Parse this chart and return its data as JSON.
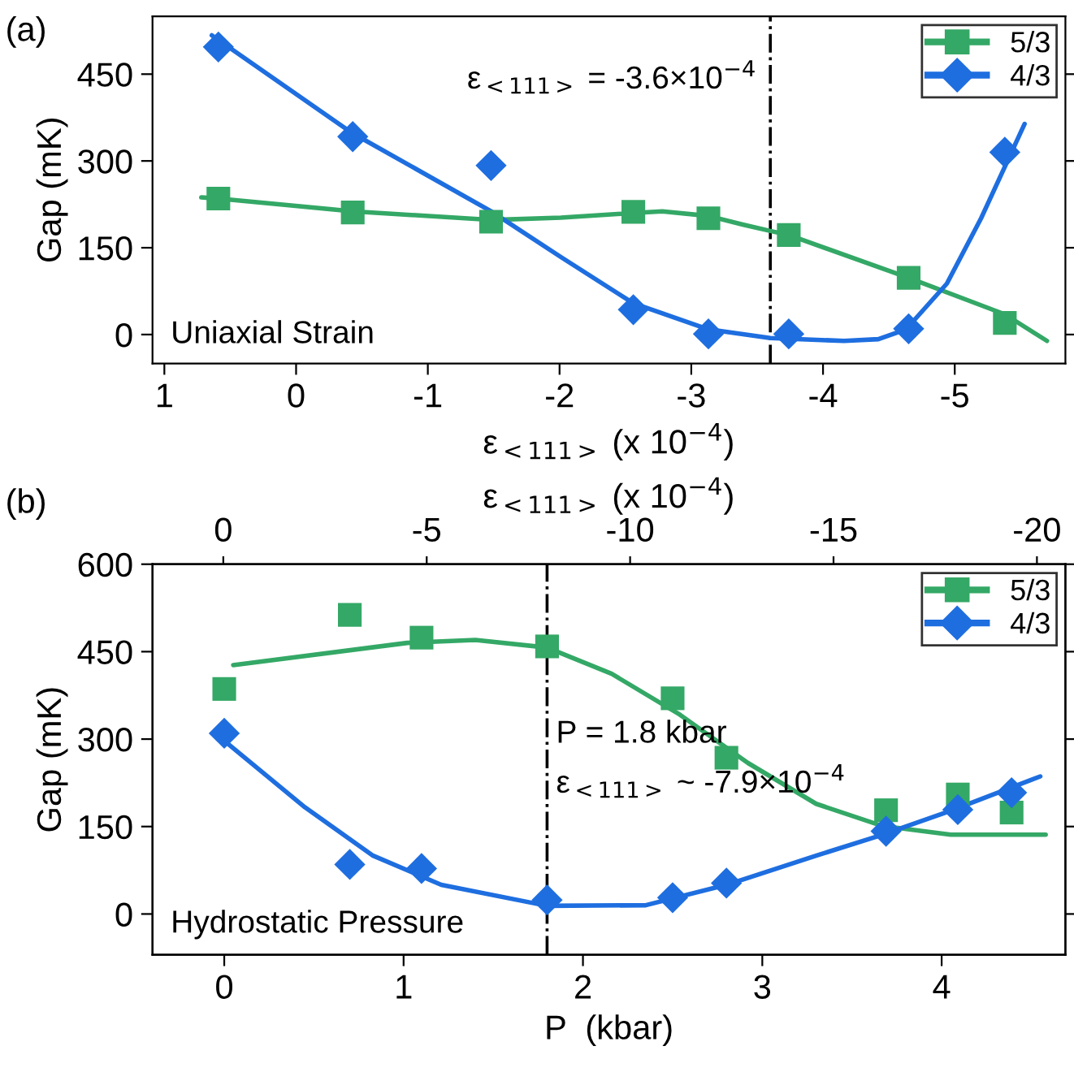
{
  "chart_data": [
    {
      "type": "scatter",
      "xlabel": "ε$_{<111>}$ (x 10$^{−4}$)",
      "ylabel": "Gap (mK)",
      "xlim": [
        1.09,
        -5.84
      ],
      "xticks": [
        1,
        0,
        -1,
        -2,
        -3,
        -4,
        -5
      ],
      "ylim": [
        -50,
        550
      ],
      "yticks": [
        0,
        150,
        300,
        450
      ],
      "legend": "top right",
      "grid": false,
      "series": [
        {
          "name": "5/3",
          "color": "#34a866",
          "marker": "square",
          "x": [
            0.59,
            -0.43,
            -1.48,
            -2.56,
            -3.13,
            -3.74,
            -4.65,
            -5.38
          ],
          "values": [
            235,
            211,
            195,
            212,
            201,
            172,
            98,
            20
          ]
        },
        {
          "name": "4/3",
          "color": "#1e6ee0",
          "marker": "diamond",
          "x": [
            0.59,
            -0.43,
            -1.48,
            -2.56,
            -3.13,
            -3.74,
            -4.65,
            -5.38
          ],
          "values": [
            497,
            342,
            292,
            43,
            1,
            1,
            10,
            315
          ]
        },
        {
          "type": "line",
          "color": "#34a866",
          "x": [
            0.72,
            0.59,
            -0.43,
            -1.48,
            -2.01,
            -2.56,
            -2.78,
            -3.13,
            -3.39,
            -3.6,
            -3.74,
            -4.65,
            -5.38,
            -5.7
          ],
          "values": [
            237,
            235,
            213,
            198,
            202,
            210,
            213,
            205,
            190,
            179,
            172,
            98,
            35,
            -11
          ]
        },
        {
          "type": "line",
          "color": "#1e6ee0",
          "x": [
            0.64,
            -0.42,
            -1.48,
            -2.01,
            -2.56,
            -3.13,
            -3.6,
            -4.16,
            -4.42,
            -4.63,
            -4.94,
            -5.2,
            -5.53
          ],
          "values": [
            517,
            349,
            213,
            134,
            54,
            9,
            -6,
            -11,
            -8,
            9,
            88,
            201,
            364
          ]
        }
      ],
      "ref_lines": [
        {
          "axis": "x",
          "value": -3.6,
          "label": "ε$_{<111>}$ = -3.6×10$^{−4}$",
          "color": "#000000",
          "line_style": "dashdot"
        }
      ],
      "annotations": [
        "(a)",
        "Uniaxial Strain"
      ]
    },
    {
      "type": "scatter",
      "xlabel": "P  (kbar)",
      "ylabel": "Gap (mK)",
      "x2label": "ε$_{<111>}$ (x 10$^{−4}$)",
      "xlim": [
        -0.4,
        4.69
      ],
      "xticks": [
        0,
        1,
        2,
        3,
        4
      ],
      "x2lim": [
        1.74,
        -20.7
      ],
      "x2ticks": [
        0,
        -5,
        -10,
        -15,
        -20
      ],
      "ylim": [
        -70,
        600
      ],
      "yticks": [
        0,
        150,
        300,
        450,
        600
      ],
      "legend": "top right",
      "grid": false,
      "series": [
        {
          "name": "5/3",
          "color": "#34a866",
          "marker": "square",
          "x": [
            0,
            0.7,
            1.1,
            1.8,
            2.5,
            2.8,
            3.69,
            4.09,
            4.39
          ],
          "values": [
            386,
            513,
            474,
            459,
            370,
            268,
            178,
            205,
            174
          ]
        },
        {
          "name": "4/3",
          "color": "#1e6ee0",
          "marker": "diamond",
          "x": [
            0,
            0.7,
            1.1,
            1.8,
            2.5,
            2.8,
            3.69,
            4.09,
            4.39
          ],
          "values": [
            310,
            85,
            78,
            24,
            28,
            53,
            142,
            179,
            208
          ]
        },
        {
          "type": "line",
          "color": "#34a866",
          "x": [
            0.05,
            1.02,
            1.4,
            1.8,
            2.16,
            2.54,
            2.92,
            3.3,
            3.67,
            4.05,
            4.58
          ],
          "values": [
            427,
            465,
            470,
            457,
            412,
            342,
            259,
            189,
            151,
            136,
            136
          ]
        },
        {
          "type": "line",
          "color": "#1e6ee0",
          "x": [
            0,
            0.45,
            0.83,
            1.21,
            1.8,
            2.35,
            2.8,
            3.3,
            3.67,
            4.05,
            4.55
          ],
          "values": [
            297,
            183,
            100,
            50,
            14,
            15,
            50,
            100,
            136,
            177,
            236
          ]
        }
      ],
      "ref_lines": [
        {
          "axis": "x",
          "value": 1.8,
          "label": "P = 1.8 kbar\nε$_{<111>}$ ~ -7.9×10$^{−4}$",
          "color": "#000000",
          "line_style": "dashdot"
        }
      ],
      "annotations": [
        "(b)",
        "Hydrostatic Pressure"
      ]
    }
  ]
}
